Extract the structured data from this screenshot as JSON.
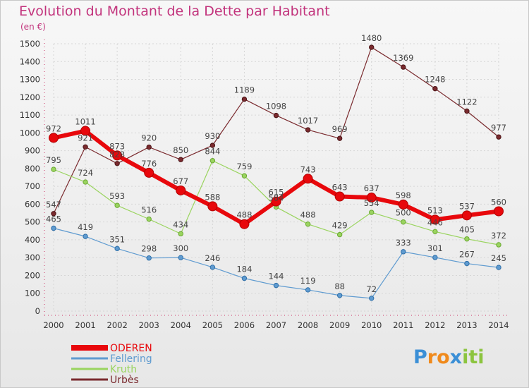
{
  "header": {
    "title": "Evolution du Montant de la Dette par Habitant",
    "subtitle": "(en €)"
  },
  "logo": {
    "part1": "P",
    "part2": "ro",
    "part3": "x",
    "part4": "iti"
  },
  "colors": {
    "ODEREN": "#e8080c",
    "Fellering": "#5f9bd0",
    "Kruth": "#9ad45f",
    "Urbès": "#7a2a2e",
    "title": "#c2337c"
  },
  "chart_data": {
    "type": "line",
    "title": "Evolution du Montant de la Dette par Habitant",
    "subtitle": "(en €)",
    "x": [
      "2000",
      "2001",
      "2002",
      "2003",
      "2004",
      "2005",
      "2006",
      "2007",
      "2008",
      "2009",
      "2010",
      "2011",
      "2012",
      "2013",
      "2014"
    ],
    "ylim": [
      0,
      1500
    ],
    "yticks": [
      0,
      100,
      200,
      300,
      400,
      500,
      600,
      700,
      800,
      900,
      1000,
      1100,
      1200,
      1300,
      1400,
      1500
    ],
    "grid": true,
    "legend_position": "bottom-left",
    "series": [
      {
        "name": "ODEREN",
        "values": [
          972,
          1011,
          873,
          776,
          677,
          588,
          488,
          615,
          743,
          643,
          637,
          598,
          513,
          537,
          560
        ]
      },
      {
        "name": "Fellering",
        "values": [
          465,
          419,
          351,
          298,
          300,
          246,
          184,
          144,
          119,
          88,
          72,
          333,
          301,
          267,
          245
        ]
      },
      {
        "name": "Kruth",
        "values": [
          795,
          724,
          593,
          516,
          434,
          844,
          759,
          584,
          488,
          429,
          554,
          500,
          446,
          405,
          372
        ]
      },
      {
        "name": "Urbès",
        "values": [
          547,
          921,
          828,
          920,
          850,
          930,
          1189,
          1098,
          1017,
          969,
          1480,
          1369,
          1248,
          1122,
          977
        ]
      }
    ]
  }
}
